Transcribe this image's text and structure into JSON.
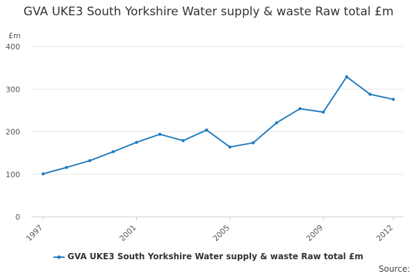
{
  "chart_data": {
    "type": "line",
    "title": "GVA UKE3 South Yorkshire Water supply & waste Raw total £m",
    "ylabel": "£m",
    "xlabel": "",
    "x": [
      1997,
      1998,
      1999,
      2000,
      2001,
      2002,
      2003,
      2004,
      2005,
      2006,
      2007,
      2008,
      2009,
      2010,
      2011,
      2012
    ],
    "x_tick_labels": [
      "1997",
      "2001",
      "2005",
      "2009",
      "2012"
    ],
    "y_tick_labels": [
      "0",
      "100",
      "200",
      "300",
      "400"
    ],
    "ylim": [
      0,
      400
    ],
    "grid": true,
    "legend_position": "bottom",
    "series": [
      {
        "name": "GVA UKE3 South Yorkshire Water supply & waste Raw total £m",
        "color": "#1f7bbf",
        "values": [
          101,
          116,
          132,
          153,
          175,
          194,
          179,
          204,
          164,
          174,
          221,
          254,
          246,
          329,
          288,
          276
        ]
      }
    ]
  },
  "source_label": "Source:"
}
